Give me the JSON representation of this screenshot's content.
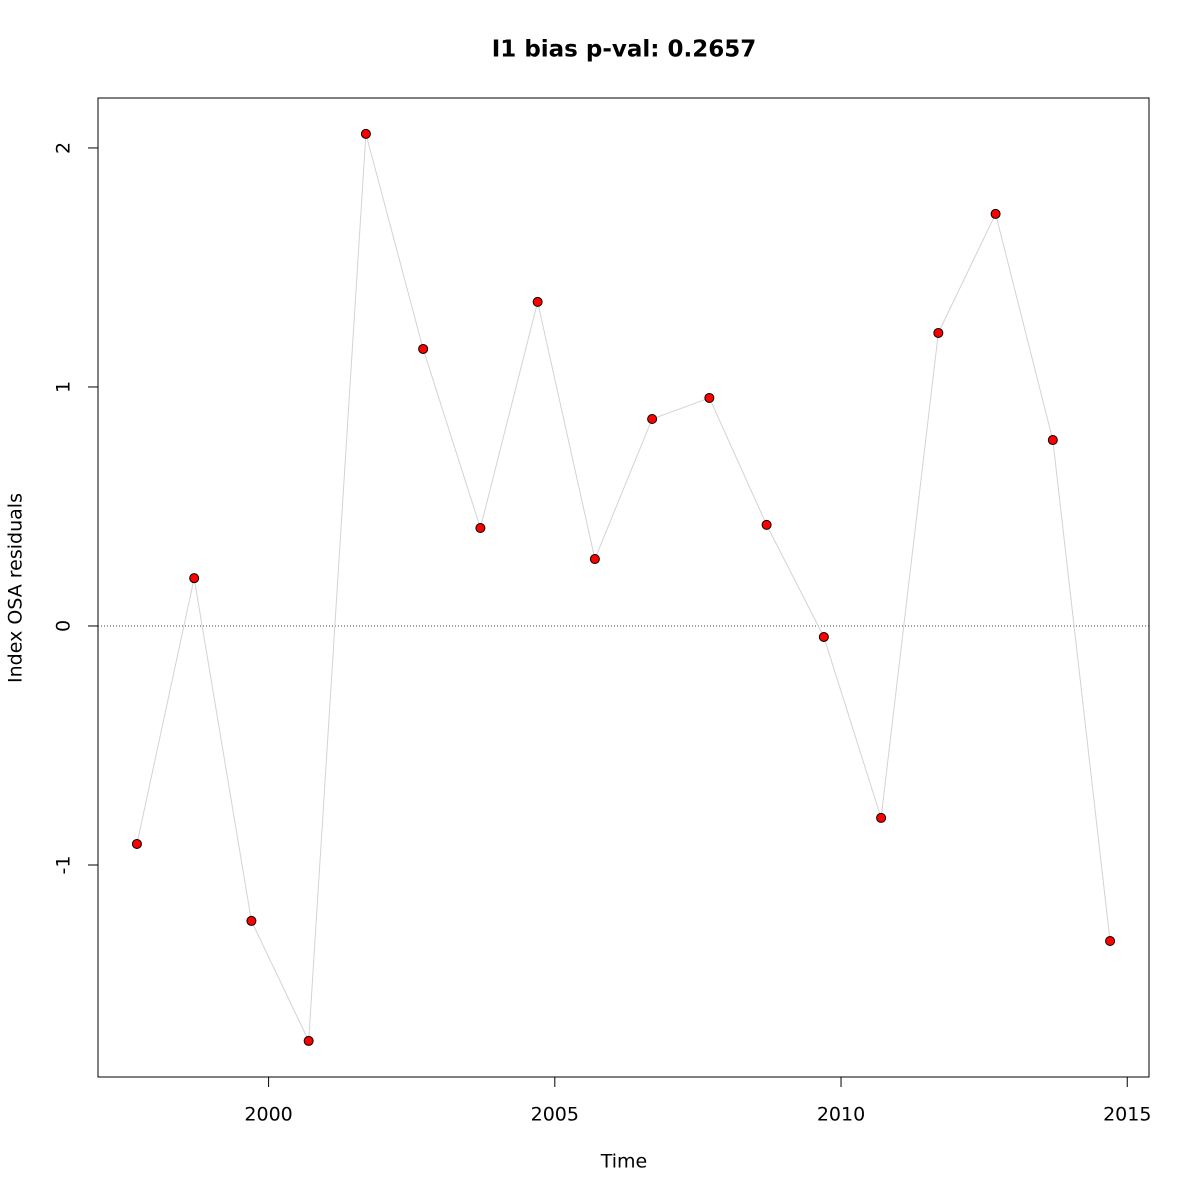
{
  "chart_data": {
    "type": "line",
    "title": "I1 bias p-val: 0.2657",
    "title_color": "#228b22",
    "xlabel": "Time",
    "ylabel": "Index OSA residuals",
    "x": [
      1997.7,
      1998.7,
      1999.7,
      2000.7,
      2001.7,
      2002.7,
      2003.7,
      2004.7,
      2005.7,
      2006.7,
      2007.7,
      2008.7,
      2009.7,
      2010.7,
      2011.7,
      2012.7,
      2013.7,
      2014.7
    ],
    "series": [
      {
        "name": "residuals",
        "color": "#ff0000",
        "line_color": "#d3d3d3",
        "values": [
          -0.912,
          0.2,
          -1.234,
          -1.736,
          2.059,
          1.159,
          0.41,
          1.356,
          0.28,
          0.866,
          0.954,
          0.423,
          -0.046,
          -0.803,
          1.226,
          1.724,
          0.778,
          -1.318
        ]
      }
    ],
    "xlim": [
      1997.02,
      2015.38
    ],
    "xticks": [
      2000,
      2005,
      2010,
      2015
    ],
    "ylim": [
      -1.887,
      2.209
    ],
    "yticks": [
      -1,
      0,
      1,
      2
    ],
    "hline": 0
  }
}
